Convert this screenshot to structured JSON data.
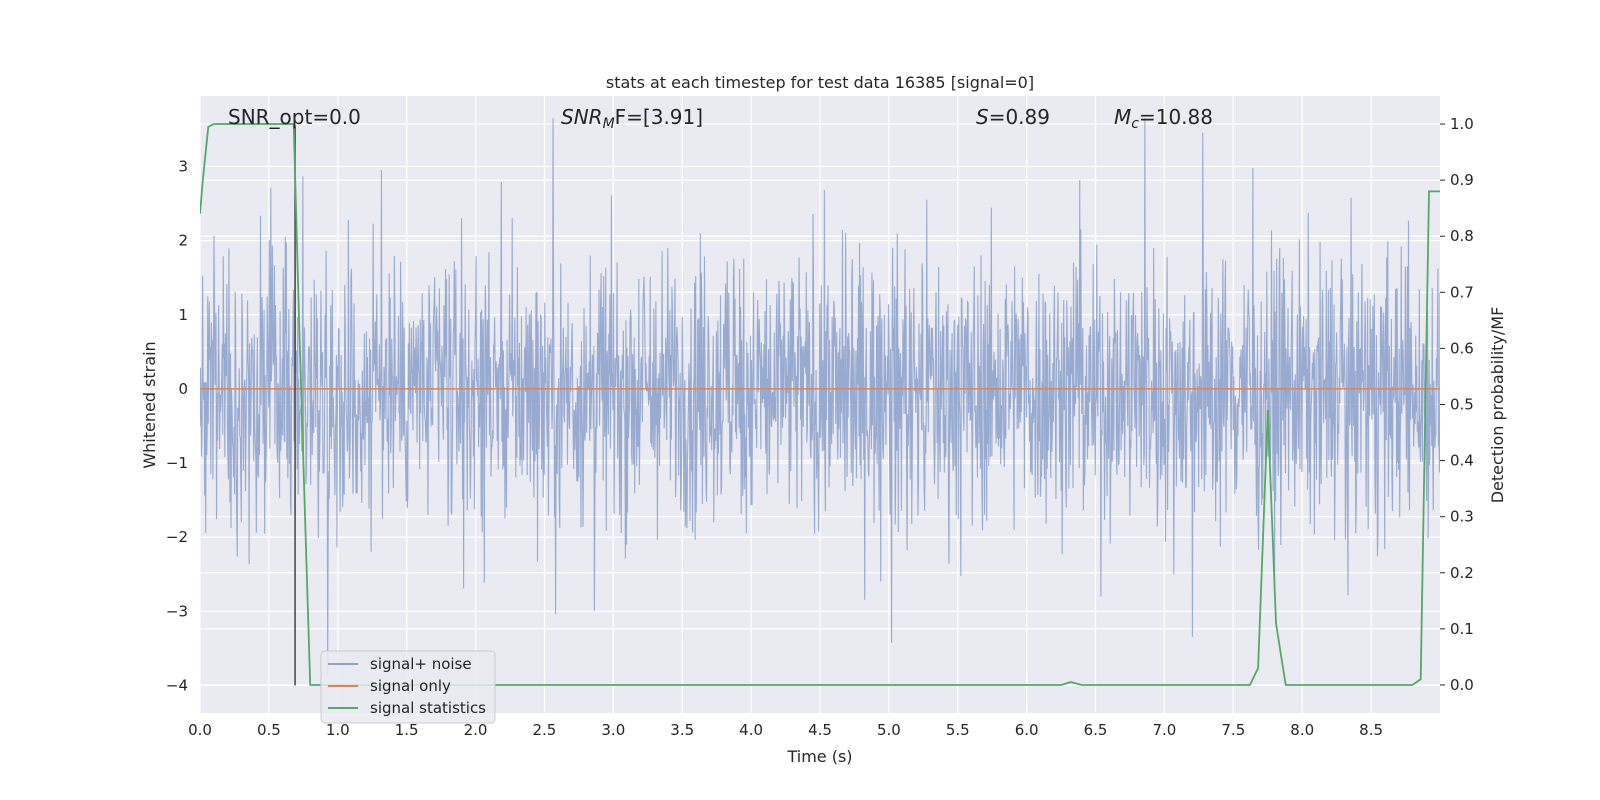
{
  "chart_data": {
    "type": "line",
    "title": "stats at each timestep for test data 16385 [signal=0]",
    "xlabel": "Time (s)",
    "ylabel_left": "Whitened strain",
    "ylabel_right": "Detection probability/MF",
    "xlim": [
      0.0,
      9.0
    ],
    "ylim_left": [
      -4.37,
      3.95
    ],
    "ylim_right": [
      -0.05,
      1.05
    ],
    "x_ticks": [
      "0.0",
      "0.5",
      "1.0",
      "1.5",
      "2.0",
      "2.5",
      "3.0",
      "3.5",
      "4.0",
      "4.5",
      "5.0",
      "5.5",
      "6.0",
      "6.5",
      "7.0",
      "7.5",
      "8.0",
      "8.5"
    ],
    "y_ticks_left": [
      "3",
      "2",
      "1",
      "0",
      "−1",
      "−2",
      "−3",
      "−4"
    ],
    "y_ticks_right": [
      "1.0",
      "0.9",
      "0.8",
      "0.7",
      "0.6",
      "0.5",
      "0.4",
      "0.3",
      "0.2",
      "0.1",
      "0.0"
    ],
    "grid": true,
    "legend_position": "lower-left",
    "series": [
      {
        "name": "signal+ noise",
        "axis": "left",
        "color": "#8ea3cc",
        "description_range": [
          -4.0,
          3.65
        ],
        "typical_band": [
          -1.6,
          1.9
        ]
      },
      {
        "name": "signal only",
        "axis": "left",
        "color": "#dd8452",
        "x": [
          0.0,
          9.0
        ],
        "y": [
          0.0,
          0.0
        ]
      },
      {
        "name": "signal statistics",
        "axis": "right",
        "color": "#55a868",
        "x": [
          0.0,
          0.02,
          0.06,
          0.1,
          0.2,
          0.4,
          0.6,
          0.68,
          0.72,
          0.8,
          1.0,
          2.0,
          3.0,
          4.0,
          5.0,
          6.0,
          6.25,
          6.32,
          6.4,
          7.0,
          7.62,
          7.68,
          7.75,
          7.81,
          7.88,
          8.0,
          8.8,
          8.86,
          8.92,
          9.0
        ],
        "y": [
          0.84,
          0.9,
          0.995,
          1.0,
          1.0,
          1.0,
          1.0,
          1.0,
          0.64,
          0.0,
          0.0,
          0.0,
          0.0,
          0.0,
          0.0,
          0.0,
          0.0,
          0.005,
          0.0,
          0.0,
          0.0,
          0.03,
          0.49,
          0.11,
          0.0,
          0.0,
          0.0,
          0.01,
          0.88,
          0.88
        ]
      }
    ],
    "marker_line": {
      "x": 0.69,
      "y_from": -4.0,
      "y_to": 3.55,
      "color": "#444444"
    },
    "annotations": [
      {
        "key": "snr_opt",
        "text": "SNR_opt=0.0"
      },
      {
        "key": "snr_mf",
        "base": "SNR",
        "sub": "M",
        "rest": "F=[3.91]"
      },
      {
        "key": "s",
        "base": "S",
        "rest": "=0.89"
      },
      {
        "key": "mc",
        "base": "M",
        "sub": "c",
        "rest": "=10.88"
      }
    ]
  }
}
